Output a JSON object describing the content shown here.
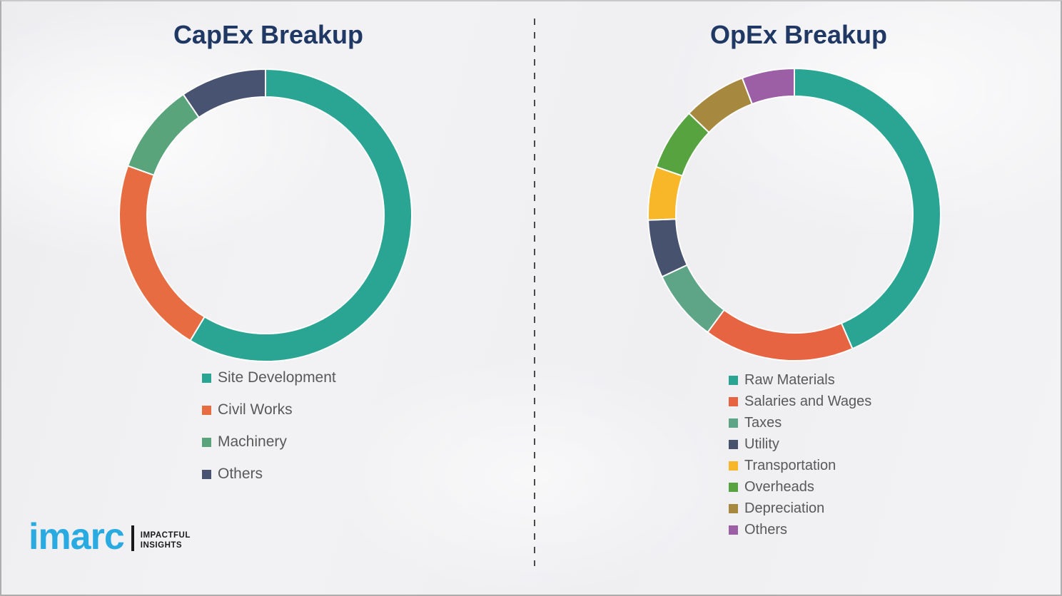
{
  "page": {
    "background_color": "#F2F2F4",
    "title_color": "#203864",
    "legend_text_color": "#595959",
    "divider_color": "#4A4A4A"
  },
  "chart_data": [
    {
      "type": "pie",
      "variant": "donut",
      "title": "CapEx Breakup",
      "categories": [
        "Site Development",
        "Civil Works",
        "Machinery",
        "Others"
      ],
      "values": [
        58.6,
        21.9,
        10.0,
        9.5
      ],
      "colors": [
        "#2BA593",
        "#E76C41",
        "#5AA47B",
        "#475370"
      ],
      "start_angle_deg": 0,
      "direction": "clockwise",
      "legend_position": "below-left",
      "data_labels": false
    },
    {
      "type": "pie",
      "variant": "donut",
      "title": "OpEx Breakup",
      "categories": [
        "Raw Materials",
        "Salaries and Wages",
        "Taxes",
        "Utility",
        "Transportation",
        "Overheads",
        "Depreciation",
        "Others"
      ],
      "values": [
        43.5,
        16.6,
        7.9,
        6.4,
        5.9,
        6.9,
        7.0,
        5.8
      ],
      "colors": [
        "#2BA593",
        "#E66442",
        "#5EA588",
        "#47536E",
        "#F7B728",
        "#57A33F",
        "#A6893F",
        "#9C5FA6"
      ],
      "start_angle_deg": 0,
      "direction": "clockwise",
      "legend_position": "below-left",
      "data_labels": false
    }
  ],
  "logo": {
    "brand": "imarc",
    "tagline_line1": "IMPACTFUL",
    "tagline_line2": "INSIGHTS",
    "brand_color": "#29ABE2"
  }
}
